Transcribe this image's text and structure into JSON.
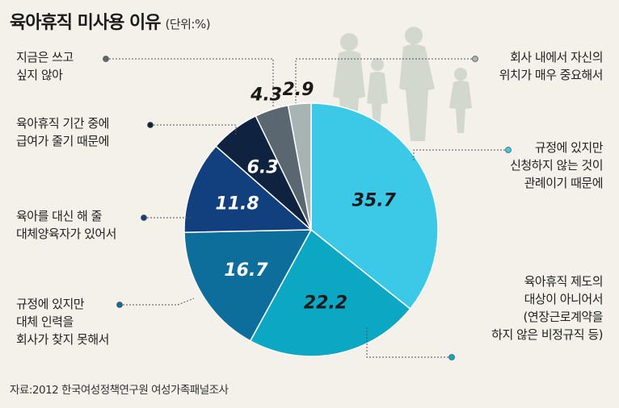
{
  "title": "육아휴직 미사용 이유",
  "unit": "(단위:%)",
  "source": "자료:2012 한국여성정책연구원 여성가족패널조사",
  "chart_data": {
    "type": "pie",
    "title": "육아휴직 미사용 이유",
    "unit": "%",
    "start": "12 o'clock",
    "direction": "clockwise",
    "slices": [
      {
        "label": [
          "규정에 있지만",
          "신청하지 않는 것이",
          "관례이기 때문에"
        ],
        "value": 35.7,
        "color": "#3cc9e8",
        "label_color": "#1a1a1a"
      },
      {
        "label": [
          "육아휴직 제도의",
          "대상이 아니어서",
          "(연장근로계약을",
          "하지 않은 비정규직 등)"
        ],
        "value": 22.2,
        "color": "#0ca8c3",
        "label_color": "#1a1a1a"
      },
      {
        "label": [
          "규정에 있지만",
          "대체 인력을",
          "회사가 찾지 못해서"
        ],
        "value": 16.7,
        "color": "#0d6e9b",
        "label_color": "#ffffff"
      },
      {
        "label": [
          "육아를 대신 해 줄",
          "대체양육자가 있어서"
        ],
        "value": 11.8,
        "color": "#123f7e",
        "label_color": "#ffffff"
      },
      {
        "label": [
          "육아휴직 기간 중에",
          "급여가 줄기 때문에"
        ],
        "value": 6.3,
        "color": "#0f2340",
        "label_color": "#ffffff"
      },
      {
        "label": [
          "지금은 쓰고",
          "싶지 않아"
        ],
        "value": 4.3,
        "color": "#5b6770",
        "label_color": "#1a1a1a"
      },
      {
        "label": [
          "회사 내에서 자신의",
          "위치가 매우 중요해서"
        ],
        "value": 2.9,
        "color": "#a8b4b4",
        "label_color": "#1a1a1a"
      }
    ]
  }
}
